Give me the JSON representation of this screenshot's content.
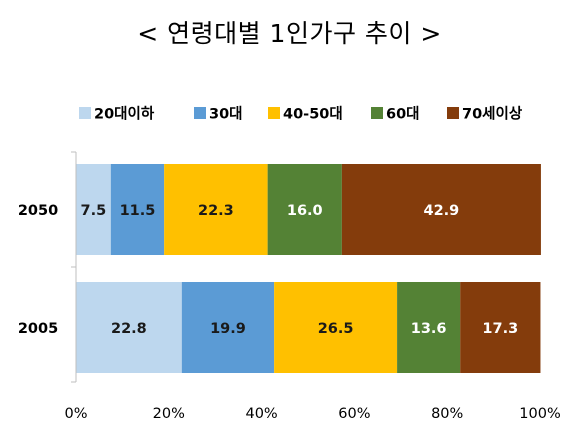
{
  "chart_data": {
    "type": "bar",
    "orientation": "horizontal",
    "stacked": "percent",
    "title": "< 연령대별 1인가구 추이 >",
    "categories": [
      "2050",
      "2005"
    ],
    "series": [
      {
        "name": "20대이하",
        "color": "#BDD7EE",
        "label_color": "#1a1a1a",
        "values": [
          7.5,
          22.8
        ]
      },
      {
        "name": "30대",
        "color": "#5B9BD5",
        "label_color": "#1a1a1a",
        "values": [
          11.5,
          19.9
        ]
      },
      {
        "name": "40-50대",
        "color": "#FFC000",
        "label_color": "#1a1a1a",
        "values": [
          22.3,
          26.5
        ]
      },
      {
        "name": "60대",
        "color": "#548235",
        "label_color": "#ffffff",
        "values": [
          16.0,
          13.6
        ]
      },
      {
        "name": "70세이상",
        "color": "#843C0C",
        "label_color": "#ffffff",
        "values": [
          42.9,
          17.3
        ]
      }
    ],
    "xlim": [
      0,
      100
    ],
    "x_ticks": [
      "0%",
      "20%",
      "40%",
      "60%",
      "80%",
      "100%"
    ],
    "legend": "top",
    "grid": false
  }
}
